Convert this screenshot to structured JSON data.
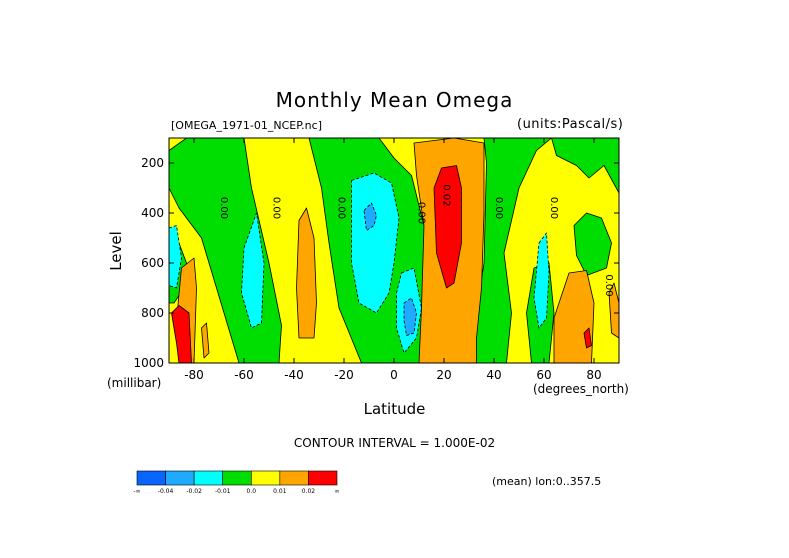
{
  "chart_data": {
    "type": "heatmap",
    "title": "Monthly Mean Omega",
    "dataset": "[OMEGA_1971-01_NCEP.nc]",
    "units": "(units:Pascal/s)",
    "ylabel": "Level",
    "yunits": "(millibar)",
    "xlabel": "Latitude",
    "xunits": "(degrees_north)",
    "contour_interval": "CONTOUR INTERVAL = 1.000E-02",
    "mean_note": "(mean) lon:0..357.5",
    "xlim": [
      -90,
      90
    ],
    "ylim": [
      1000,
      100
    ],
    "x_ticks": [
      -80,
      -60,
      -40,
      -20,
      0,
      20,
      40,
      60,
      80
    ],
    "x_tick_labels": [
      "-80",
      "-60",
      "-40",
      "-20",
      "0",
      "20",
      "40",
      "60",
      "80"
    ],
    "y_ticks": [
      200,
      400,
      600,
      800,
      1000
    ],
    "y_tick_labels": [
      "200",
      "400",
      "600",
      "800",
      "1000"
    ],
    "contour_labels": [
      {
        "lat": -68,
        "level": 380,
        "text": "0.00"
      },
      {
        "lat": -47,
        "level": 380,
        "text": "0.00"
      },
      {
        "lat": -21,
        "level": 380,
        "text": "0.00"
      },
      {
        "lat": 11,
        "level": 400,
        "text": "0.00"
      },
      {
        "lat": 21,
        "level": 330,
        "text": "0.02"
      },
      {
        "lat": 42,
        "level": 380,
        "text": "0.00"
      },
      {
        "lat": 64,
        "level": 380,
        "text": "0.00"
      },
      {
        "lat": 86,
        "level": 690,
        "text": "0.00"
      }
    ],
    "colorbar": {
      "colors": [
        "#0a64ff",
        "#1eaaff",
        "#00ffff",
        "#00dd00",
        "#ffff00",
        "#ffa500",
        "#ff0000"
      ],
      "labels": [
        "-∞",
        "-0.04",
        "-0.02",
        "-0.01",
        "0.0",
        "0.01",
        "0.02",
        "∞"
      ]
    },
    "regions": [
      {
        "class": "yellow",
        "polygon": [
          [
            -90,
            100
          ],
          [
            90,
            100
          ],
          [
            90,
            1000
          ],
          [
            -90,
            1000
          ]
        ]
      },
      {
        "class": "green",
        "polygon": [
          [
            -90,
            150
          ],
          [
            -83,
            100
          ],
          [
            -60,
            100
          ],
          [
            -57,
            300
          ],
          [
            -50,
            600
          ],
          [
            -45,
            850
          ],
          [
            -46,
            1000
          ],
          [
            -62,
            1000
          ],
          [
            -71,
            700
          ],
          [
            -77,
            500
          ],
          [
            -86,
            380
          ],
          [
            -90,
            300
          ]
        ]
      },
      {
        "class": "green",
        "polygon": [
          [
            -34,
            100
          ],
          [
            -6,
            100
          ],
          [
            0,
            180
          ],
          [
            7,
            250
          ],
          [
            12,
            450
          ],
          [
            12,
            620
          ],
          [
            11,
            850
          ],
          [
            17,
            1000
          ],
          [
            -13,
            1000
          ],
          [
            -22,
            780
          ],
          [
            -26,
            520
          ],
          [
            -29,
            300
          ]
        ]
      },
      {
        "class": "green",
        "polygon": [
          [
            36,
            100
          ],
          [
            63,
            100
          ],
          [
            57,
            150
          ],
          [
            50,
            300
          ],
          [
            44,
            560
          ],
          [
            47,
            800
          ],
          [
            45,
            1000
          ],
          [
            30,
            1000
          ],
          [
            36,
            600
          ],
          [
            37,
            200
          ]
        ]
      },
      {
        "class": "green",
        "polygon": [
          [
            63,
            100
          ],
          [
            90,
            100
          ],
          [
            90,
            320
          ],
          [
            84,
            210
          ],
          [
            78,
            260
          ],
          [
            73,
            210
          ],
          [
            65,
            170
          ]
        ]
      },
      {
        "class": "green",
        "polygon": [
          [
            72,
            450
          ],
          [
            77,
            400
          ],
          [
            83,
            420
          ],
          [
            87,
            520
          ],
          [
            85,
            620
          ],
          [
            77,
            650
          ],
          [
            73,
            570
          ]
        ]
      },
      {
        "class": "green",
        "polygon": [
          [
            56,
            620
          ],
          [
            62,
            600
          ],
          [
            64,
            800
          ],
          [
            62,
            1000
          ],
          [
            55,
            1000
          ],
          [
            53,
            800
          ]
        ]
      },
      {
        "class": "green",
        "polygon": [
          [
            -90,
            570
          ],
          [
            -86,
            520
          ],
          [
            -83,
            600
          ],
          [
            -84,
            700
          ],
          [
            -88,
            760
          ],
          [
            -90,
            760
          ]
        ]
      },
      {
        "class": "cyan",
        "polygon": [
          [
            -90,
            460
          ],
          [
            -87,
            450
          ],
          [
            -85,
            580
          ],
          [
            -87,
            700
          ],
          [
            -90,
            690
          ]
        ]
      },
      {
        "class": "cyan",
        "polygon": [
          [
            -60,
            540
          ],
          [
            -55,
            400
          ],
          [
            -52,
            600
          ],
          [
            -53,
            840
          ],
          [
            -57,
            860
          ],
          [
            -61,
            720
          ]
        ]
      },
      {
        "class": "cyan",
        "polygon": [
          [
            -17,
            270
          ],
          [
            -8,
            240
          ],
          [
            -1,
            280
          ],
          [
            2,
            420
          ],
          [
            0,
            600
          ],
          [
            -2,
            720
          ],
          [
            -7,
            800
          ],
          [
            -14,
            760
          ],
          [
            -17,
            600
          ]
        ]
      },
      {
        "class": "cyan",
        "polygon": [
          [
            3,
            640
          ],
          [
            8,
            620
          ],
          [
            11,
            780
          ],
          [
            9,
            900
          ],
          [
            4,
            960
          ],
          [
            1,
            860
          ],
          [
            1,
            720
          ]
        ]
      },
      {
        "class": "cyan",
        "polygon": [
          [
            58,
            520
          ],
          [
            61,
            480
          ],
          [
            62,
            640
          ],
          [
            61,
            820
          ],
          [
            58,
            860
          ],
          [
            56,
            740
          ]
        ]
      },
      {
        "class": "blue",
        "polygon": [
          [
            -12,
            390
          ],
          [
            -9,
            360
          ],
          [
            -7,
            410
          ],
          [
            -8,
            450
          ],
          [
            -11,
            470
          ]
        ]
      },
      {
        "class": "blue",
        "polygon": [
          [
            4,
            760
          ],
          [
            7,
            740
          ],
          [
            9,
            800
          ],
          [
            8,
            880
          ],
          [
            5,
            890
          ],
          [
            4,
            830
          ]
        ]
      },
      {
        "class": "orange",
        "polygon": [
          [
            8,
            120
          ],
          [
            24,
            100
          ],
          [
            36,
            120
          ],
          [
            36,
            400
          ],
          [
            35,
            700
          ],
          [
            33,
            900
          ],
          [
            33,
            1000
          ],
          [
            10,
            1000
          ],
          [
            11,
            780
          ],
          [
            12,
            450
          ],
          [
            9,
            250
          ]
        ]
      },
      {
        "class": "orange",
        "polygon": [
          [
            -38,
            430
          ],
          [
            -35,
            380
          ],
          [
            -32,
            500
          ],
          [
            -31,
            760
          ],
          [
            -32,
            900
          ],
          [
            -38,
            900
          ],
          [
            -39,
            700
          ]
        ]
      },
      {
        "class": "orange",
        "polygon": [
          [
            -87,
            830
          ],
          [
            -85,
            620
          ],
          [
            -80,
            580
          ],
          [
            -79,
            700
          ],
          [
            -80,
            1000
          ],
          [
            -86,
            1000
          ]
        ]
      },
      {
        "class": "orange",
        "polygon": [
          [
            -77,
            860
          ],
          [
            -75,
            840
          ],
          [
            -74,
            960
          ],
          [
            -76,
            980
          ]
        ]
      },
      {
        "class": "orange",
        "polygon": [
          [
            64,
            820
          ],
          [
            70,
            640
          ],
          [
            77,
            630
          ],
          [
            80,
            760
          ],
          [
            79,
            1000
          ],
          [
            64,
            1000
          ]
        ]
      },
      {
        "class": "orange",
        "polygon": [
          [
            86,
            720
          ],
          [
            88,
            680
          ],
          [
            90,
            760
          ],
          [
            90,
            900
          ],
          [
            87,
            880
          ]
        ]
      },
      {
        "class": "red",
        "polygon": [
          [
            16,
            300
          ],
          [
            19,
            220
          ],
          [
            25,
            210
          ],
          [
            27,
            300
          ],
          [
            27,
            520
          ],
          [
            24,
            680
          ],
          [
            21,
            700
          ],
          [
            17,
            560
          ]
        ]
      },
      {
        "class": "red",
        "polygon": [
          [
            -89,
            800
          ],
          [
            -86,
            770
          ],
          [
            -82,
            800
          ],
          [
            -81,
            1000
          ],
          [
            -86,
            1000
          ],
          [
            -87,
            920
          ]
        ]
      },
      {
        "class": "red",
        "polygon": [
          [
            76,
            880
          ],
          [
            78,
            860
          ],
          [
            79,
            930
          ],
          [
            77,
            940
          ]
        ]
      }
    ]
  }
}
